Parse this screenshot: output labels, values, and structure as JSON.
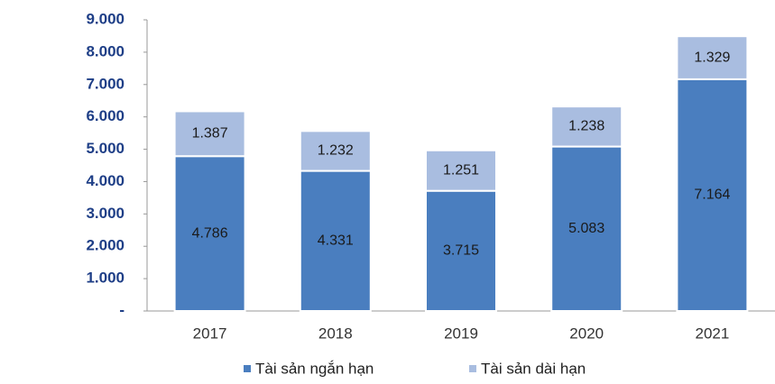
{
  "chart_data": {
    "type": "stacked_bar",
    "categories": [
      "2017",
      "2018",
      "2019",
      "2020",
      "2021"
    ],
    "series": [
      {
        "name": "Tài sản ngắn hạn",
        "color": "#4a7ebf",
        "values": [
          4786,
          4331,
          3715,
          5083,
          7164
        ],
        "value_labels": [
          "4.786",
          "4.331",
          "3.715",
          "5.083",
          "7.164"
        ]
      },
      {
        "name": "Tài sản dài hạn",
        "color": "#a9bde0",
        "values": [
          1387,
          1232,
          1251,
          1238,
          1329
        ],
        "value_labels": [
          "1.387",
          "1.232",
          "1.251",
          "1.238",
          "1.329"
        ]
      }
    ],
    "ylim": [
      0,
      9000
    ],
    "yticks": [
      {
        "value": 0,
        "label": "-"
      },
      {
        "value": 1000,
        "label": "1.000"
      },
      {
        "value": 2000,
        "label": "2.000"
      },
      {
        "value": 3000,
        "label": "3.000"
      },
      {
        "value": 4000,
        "label": "4.000"
      },
      {
        "value": 5000,
        "label": "5.000"
      },
      {
        "value": 6000,
        "label": "6.000"
      },
      {
        "value": 7000,
        "label": "7.000"
      },
      {
        "value": 8000,
        "label": "8.000"
      },
      {
        "value": 9000,
        "label": "9.000"
      }
    ],
    "legend": "bottom"
  }
}
